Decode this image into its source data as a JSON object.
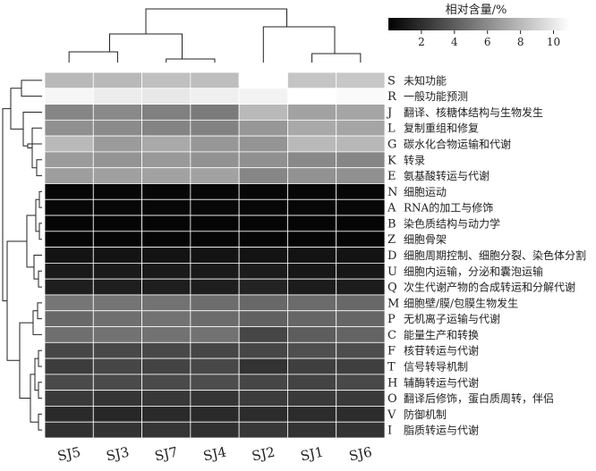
{
  "chart_data": {
    "type": "heatmap",
    "colorbar": {
      "title": "相对含量/%",
      "ticks": [
        2,
        4,
        6,
        8,
        10
      ],
      "range": [
        0,
        11
      ],
      "colormap": "gray"
    },
    "columns": [
      "SJ5",
      "SJ3",
      "SJ7",
      "SJ4",
      "SJ2",
      "SJ1",
      "SJ6"
    ],
    "rows": [
      {
        "code": "S",
        "name": "未知功能"
      },
      {
        "code": "R",
        "name": "一般功能预测"
      },
      {
        "code": "J",
        "name": "翻译、核糖体结构与生物发生"
      },
      {
        "code": "L",
        "name": "复制重组和修复"
      },
      {
        "code": "G",
        "name": "碳水化合物运输和代谢"
      },
      {
        "code": "K",
        "name": "转录"
      },
      {
        "code": "E",
        "name": "氨基酸转运与代谢"
      },
      {
        "code": "N",
        "name": "细胞运动"
      },
      {
        "code": "A",
        "name": "RNA的加工与修饰"
      },
      {
        "code": "B",
        "name": "染色质结构与动力学"
      },
      {
        "code": "Z",
        "name": "细胞骨架"
      },
      {
        "code": "D",
        "name": "细胞周期控制、细胞分裂、染色体分割"
      },
      {
        "code": "U",
        "name": "细胞内运输，分泌和囊泡运输"
      },
      {
        "code": "Q",
        "name": "次生代谢产物的合成转运和分解代谢"
      },
      {
        "code": "M",
        "name": "细胞壁/膜/包膜生物发生"
      },
      {
        "code": "P",
        "name": "无机离子运输与代谢"
      },
      {
        "code": "C",
        "name": "能量生产和转换"
      },
      {
        "code": "F",
        "name": "核苷转运与代谢"
      },
      {
        "code": "T",
        "name": "信号转导机制"
      },
      {
        "code": "H",
        "name": "辅酶转运与代谢"
      },
      {
        "code": "O",
        "name": "翻译后修饰，蛋白质周转，伴侣"
      },
      {
        "code": "V",
        "name": "防御机制"
      },
      {
        "code": "I",
        "name": "脂质转运与代谢"
      }
    ],
    "values": [
      [
        8.0,
        8.0,
        8.3,
        8.2,
        11.0,
        8.5,
        8.6
      ],
      [
        10.6,
        10.2,
        10.0,
        10.3,
        10.5,
        11.0,
        10.8
      ],
      [
        5.8,
        5.9,
        5.5,
        5.3,
        8.0,
        7.0,
        7.1
      ],
      [
        6.2,
        6.0,
        5.7,
        5.6,
        6.5,
        7.3,
        7.1
      ],
      [
        8.0,
        6.7,
        7.3,
        6.5,
        6.4,
        8.0,
        7.9
      ],
      [
        6.7,
        6.4,
        6.6,
        6.3,
        6.2,
        5.9,
        5.8
      ],
      [
        6.8,
        6.9,
        7.0,
        7.0,
        5.8,
        6.3,
        6.2
      ],
      [
        0.3,
        0.3,
        0.3,
        0.3,
        0.3,
        0.3,
        0.3
      ],
      [
        0.3,
        0.3,
        0.3,
        0.3,
        0.3,
        0.3,
        0.3
      ],
      [
        0.2,
        0.2,
        0.2,
        0.2,
        0.2,
        0.2,
        0.2
      ],
      [
        0.2,
        0.2,
        0.2,
        0.2,
        0.2,
        0.2,
        0.2
      ],
      [
        0.8,
        0.8,
        0.8,
        0.8,
        0.8,
        0.8,
        0.8
      ],
      [
        1.1,
        1.1,
        1.1,
        1.1,
        1.2,
        1.0,
        1.0
      ],
      [
        1.3,
        1.3,
        1.3,
        1.3,
        1.5,
        1.2,
        1.2
      ],
      [
        5.1,
        5.0,
        4.9,
        4.7,
        4.5,
        4.6,
        4.5
      ],
      [
        4.5,
        4.8,
        4.9,
        4.6,
        4.2,
        4.4,
        4.4
      ],
      [
        4.8,
        4.9,
        4.9,
        4.9,
        3.0,
        4.0,
        4.3
      ],
      [
        3.0,
        3.1,
        3.1,
        3.0,
        3.0,
        3.4,
        3.3
      ],
      [
        2.6,
        3.0,
        2.9,
        3.1,
        2.2,
        2.7,
        2.7
      ],
      [
        3.2,
        3.2,
        3.2,
        3.3,
        3.0,
        2.9,
        3.1
      ],
      [
        2.5,
        2.3,
        2.4,
        2.3,
        2.6,
        2.5,
        2.5
      ],
      [
        1.8,
        1.7,
        1.8,
        1.8,
        1.9,
        1.9,
        1.9
      ],
      [
        2.1,
        2.2,
        2.3,
        2.1,
        2.4,
        2.2,
        2.2
      ]
    ]
  }
}
